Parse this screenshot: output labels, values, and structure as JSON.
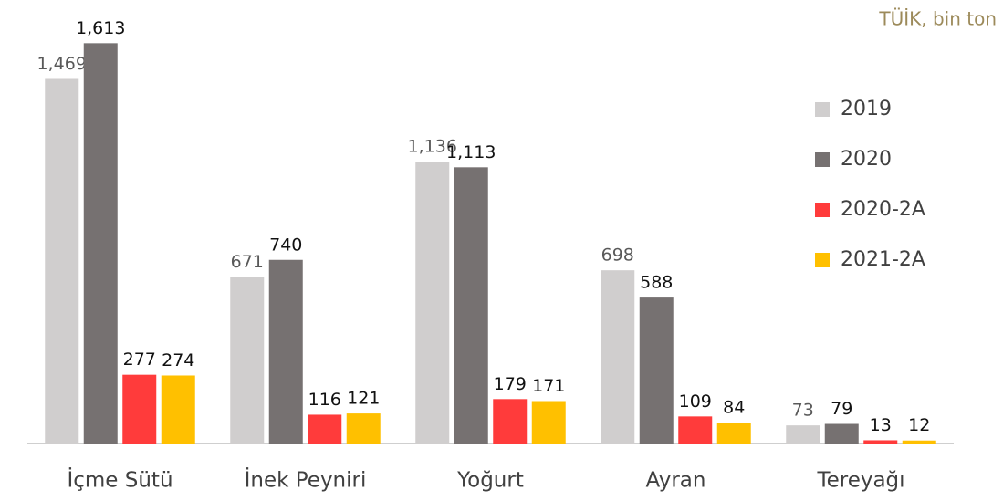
{
  "chart_data": {
    "type": "bar",
    "subtitle": "TÜİK, bin ton",
    "categories": [
      "İçme Sütü",
      "İnek Peyniri",
      "Yoğurt",
      "Ayran",
      "Tereyağı"
    ],
    "series": [
      {
        "name": "2019",
        "color": "#d0cece",
        "values": [
          1469,
          671,
          1136,
          698,
          73
        ],
        "value_labels": [
          "1,469",
          "671",
          "1,136",
          "698",
          "73"
        ]
      },
      {
        "name": "2020",
        "color": "#767171",
        "values": [
          1613,
          740,
          1113,
          588,
          79
        ],
        "value_labels": [
          "1,613",
          "740",
          "1,113",
          "588",
          "79"
        ]
      },
      {
        "name": "2020-2A",
        "color": "#ff3b3b",
        "values": [
          277,
          116,
          179,
          109,
          13
        ],
        "value_labels": [
          "277",
          "116",
          "179",
          "109",
          "13"
        ]
      },
      {
        "name": "2021-2A",
        "color": "#ffc000",
        "values": [
          274,
          121,
          171,
          84,
          12
        ],
        "value_labels": [
          "274",
          "121",
          "171",
          "84",
          "12"
        ]
      }
    ],
    "ylim": [
      0,
      1640
    ],
    "legend": "right"
  }
}
